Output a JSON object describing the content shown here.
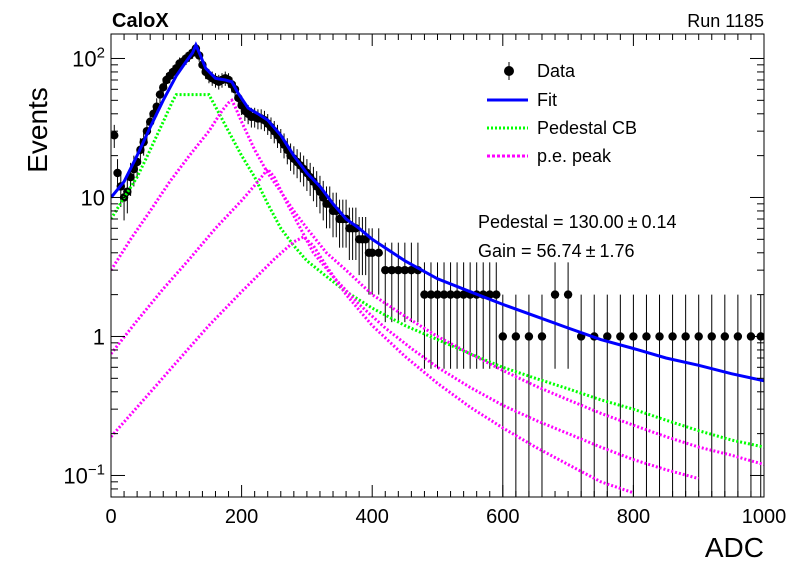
{
  "header": {
    "experiment": "CaloX",
    "run": "Run 1185"
  },
  "chart_data": {
    "type": "scatter",
    "title": "",
    "xlabel": "ADC",
    "ylabel": "Events",
    "xlim": [
      0,
      1000
    ],
    "ylim": [
      0.07,
      150
    ],
    "yscale": "log",
    "x_ticks": [
      0,
      200,
      400,
      600,
      800,
      1000
    ],
    "y_ticks": [
      {
        "value": 0.1,
        "base": "10",
        "exp": "−1",
        "text": ""
      },
      {
        "value": 1,
        "base": "",
        "exp": "",
        "text": "1"
      },
      {
        "value": 10,
        "base": "",
        "exp": "",
        "text": "10"
      },
      {
        "value": 100,
        "base": "10",
        "exp": "2",
        "text": ""
      }
    ],
    "legend": {
      "placement": "top-right",
      "entries": [
        {
          "label": "Data",
          "style": "marker",
          "color": "#000000"
        },
        {
          "label": "Fit",
          "style": "solid",
          "color": "#0000ff"
        },
        {
          "label": "Pedestal CB",
          "style": "dotted",
          "color": "#00ff00"
        },
        {
          "label": "p.e. peak",
          "style": "dotted",
          "color": "#ff00ff"
        }
      ]
    },
    "annotations": [
      {
        "label": "Pedestal = 130.00",
        "pm": "±",
        "err": "0.14"
      },
      {
        "label": "Gain = 56.74",
        "pm": "±",
        "err": "1.76"
      }
    ],
    "fit_parameters": {
      "pedestal": 130.0,
      "pedestal_err": 0.14,
      "gain": 56.74,
      "gain_err": 1.76
    },
    "series": [
      {
        "name": "Data",
        "kind": "points",
        "color": "#000000",
        "points": [
          [
            5,
            28
          ],
          [
            10,
            15
          ],
          [
            15,
            12
          ],
          [
            20,
            10
          ],
          [
            25,
            11
          ],
          [
            30,
            14
          ],
          [
            35,
            16
          ],
          [
            40,
            18
          ],
          [
            45,
            22
          ],
          [
            50,
            25
          ],
          [
            55,
            30
          ],
          [
            60,
            35
          ],
          [
            65,
            40
          ],
          [
            70,
            45
          ],
          [
            75,
            55
          ],
          [
            80,
            62
          ],
          [
            85,
            70
          ],
          [
            90,
            75
          ],
          [
            95,
            80
          ],
          [
            100,
            85
          ],
          [
            105,
            92
          ],
          [
            110,
            95
          ],
          [
            115,
            100
          ],
          [
            120,
            105
          ],
          [
            125,
            110
          ],
          [
            130,
            118
          ],
          [
            135,
            105
          ],
          [
            140,
            90
          ],
          [
            145,
            80
          ],
          [
            150,
            75
          ],
          [
            155,
            72
          ],
          [
            160,
            70
          ],
          [
            165,
            68
          ],
          [
            170,
            70
          ],
          [
            175,
            72
          ],
          [
            180,
            70
          ],
          [
            185,
            65
          ],
          [
            190,
            60
          ],
          [
            195,
            52
          ],
          [
            200,
            46
          ],
          [
            205,
            42
          ],
          [
            210,
            40
          ],
          [
            215,
            38
          ],
          [
            220,
            38
          ],
          [
            225,
            37
          ],
          [
            230,
            37
          ],
          [
            235,
            36
          ],
          [
            240,
            34
          ],
          [
            245,
            32
          ],
          [
            250,
            30
          ],
          [
            255,
            28
          ],
          [
            260,
            26
          ],
          [
            265,
            24
          ],
          [
            270,
            22
          ],
          [
            275,
            20
          ],
          [
            280,
            19
          ],
          [
            285,
            18
          ],
          [
            290,
            17
          ],
          [
            295,
            16
          ],
          [
            300,
            15
          ],
          [
            305,
            14
          ],
          [
            310,
            13
          ],
          [
            315,
            12
          ],
          [
            320,
            11
          ],
          [
            325,
            10
          ],
          [
            330,
            9
          ],
          [
            335,
            9
          ],
          [
            340,
            8
          ],
          [
            345,
            8
          ],
          [
            350,
            7
          ],
          [
            355,
            7
          ],
          [
            360,
            7
          ],
          [
            365,
            6
          ],
          [
            370,
            6
          ],
          [
            375,
            6
          ],
          [
            380,
            5
          ],
          [
            385,
            5
          ],
          [
            390,
            5
          ],
          [
            395,
            4
          ],
          [
            400,
            4
          ],
          [
            410,
            4
          ],
          [
            420,
            3
          ],
          [
            430,
            3
          ],
          [
            440,
            3
          ],
          [
            450,
            3
          ],
          [
            460,
            3
          ],
          [
            470,
            3
          ],
          [
            480,
            2
          ],
          [
            490,
            2
          ],
          [
            500,
            2
          ],
          [
            510,
            2
          ],
          [
            520,
            2
          ],
          [
            530,
            2
          ],
          [
            540,
            2
          ],
          [
            550,
            2
          ],
          [
            560,
            2
          ],
          [
            570,
            2
          ],
          [
            580,
            2
          ],
          [
            590,
            2
          ],
          [
            600,
            1
          ],
          [
            620,
            1
          ],
          [
            640,
            1
          ],
          [
            660,
            1
          ],
          [
            680,
            2
          ],
          [
            700,
            2
          ],
          [
            720,
            1
          ],
          [
            740,
            1
          ],
          [
            760,
            1
          ],
          [
            780,
            1
          ],
          [
            800,
            1
          ],
          [
            820,
            1
          ],
          [
            840,
            1
          ],
          [
            860,
            1
          ],
          [
            880,
            1
          ],
          [
            900,
            1
          ],
          [
            920,
            1
          ],
          [
            940,
            1
          ],
          [
            960,
            1
          ],
          [
            980,
            1
          ],
          [
            995,
            1
          ]
        ]
      },
      {
        "name": "Fit",
        "kind": "line",
        "color": "#0000ff",
        "points": [
          [
            0,
            10
          ],
          [
            20,
            13
          ],
          [
            40,
            20
          ],
          [
            60,
            32
          ],
          [
            80,
            50
          ],
          [
            100,
            75
          ],
          [
            115,
            95
          ],
          [
            125,
            110
          ],
          [
            130,
            125
          ],
          [
            135,
            110
          ],
          [
            145,
            85
          ],
          [
            160,
            72
          ],
          [
            175,
            70
          ],
          [
            185,
            68
          ],
          [
            195,
            56
          ],
          [
            210,
            44
          ],
          [
            225,
            40
          ],
          [
            240,
            36
          ],
          [
            260,
            28
          ],
          [
            280,
            20
          ],
          [
            300,
            15
          ],
          [
            320,
            12
          ],
          [
            340,
            9
          ],
          [
            360,
            7
          ],
          [
            380,
            6
          ],
          [
            400,
            5
          ],
          [
            450,
            3.5
          ],
          [
            500,
            2.6
          ],
          [
            550,
            2.1
          ],
          [
            600,
            1.7
          ],
          [
            650,
            1.4
          ],
          [
            700,
            1.15
          ],
          [
            750,
            0.95
          ],
          [
            800,
            0.82
          ],
          [
            850,
            0.7
          ],
          [
            900,
            0.62
          ],
          [
            950,
            0.54
          ],
          [
            1000,
            0.48
          ]
        ]
      },
      {
        "name": "Pedestal CB",
        "kind": "dotted",
        "color": "#00ff00",
        "points": [
          [
            0,
            7
          ],
          [
            20,
            10
          ],
          [
            40,
            14
          ],
          [
            60,
            22
          ],
          [
            80,
            35
          ],
          [
            95,
            50
          ],
          [
            100,
            55
          ],
          [
            150,
            55
          ],
          [
            160,
            45
          ],
          [
            180,
            30
          ],
          [
            200,
            20
          ],
          [
            220,
            14
          ],
          [
            240,
            9
          ],
          [
            260,
            6
          ],
          [
            280,
            4.5
          ],
          [
            300,
            3.5
          ],
          [
            330,
            2.7
          ],
          [
            360,
            2.1
          ],
          [
            400,
            1.6
          ],
          [
            450,
            1.2
          ],
          [
            500,
            0.95
          ],
          [
            550,
            0.75
          ],
          [
            600,
            0.6
          ],
          [
            650,
            0.5
          ],
          [
            700,
            0.42
          ],
          [
            750,
            0.35
          ],
          [
            800,
            0.3
          ],
          [
            850,
            0.25
          ],
          [
            900,
            0.21
          ],
          [
            950,
            0.18
          ],
          [
            1000,
            0.16
          ]
        ]
      },
      {
        "name": "p.e. peak 1",
        "kind": "dotted",
        "color": "#ff00ff",
        "points": [
          [
            0,
            3
          ],
          [
            30,
            5
          ],
          [
            60,
            8
          ],
          [
            90,
            13
          ],
          [
            120,
            20
          ],
          [
            150,
            30
          ],
          [
            170,
            42
          ],
          [
            180,
            48
          ],
          [
            185,
            50
          ],
          [
            190,
            45
          ],
          [
            200,
            35
          ],
          [
            220,
            22
          ],
          [
            240,
            15
          ],
          [
            260,
            11
          ],
          [
            280,
            8
          ],
          [
            300,
            6
          ],
          [
            330,
            4
          ],
          [
            360,
            3
          ],
          [
            400,
            2
          ],
          [
            450,
            1.4
          ],
          [
            500,
            1
          ],
          [
            550,
            0.75
          ],
          [
            600,
            0.57
          ],
          [
            650,
            0.44
          ],
          [
            700,
            0.35
          ],
          [
            750,
            0.28
          ],
          [
            800,
            0.23
          ],
          [
            850,
            0.19
          ],
          [
            900,
            0.16
          ],
          [
            950,
            0.14
          ],
          [
            1000,
            0.12
          ]
        ]
      },
      {
        "name": "p.e. peak 2",
        "kind": "dotted",
        "color": "#ff00ff",
        "points": [
          [
            0,
            0.75
          ],
          [
            40,
            1.3
          ],
          [
            80,
            2.2
          ],
          [
            120,
            3.6
          ],
          [
            160,
            6
          ],
          [
            200,
            9.5
          ],
          [
            225,
            13
          ],
          [
            240,
            16
          ],
          [
            250,
            14
          ],
          [
            270,
            9
          ],
          [
            290,
            6
          ],
          [
            310,
            4
          ],
          [
            340,
            2.7
          ],
          [
            380,
            1.7
          ],
          [
            420,
            1.15
          ],
          [
            460,
            0.82
          ],
          [
            500,
            0.6
          ],
          [
            550,
            0.43
          ],
          [
            600,
            0.32
          ],
          [
            650,
            0.25
          ],
          [
            700,
            0.2
          ],
          [
            750,
            0.16
          ],
          [
            800,
            0.13
          ],
          [
            850,
            0.11
          ],
          [
            900,
            0.095
          ]
        ]
      },
      {
        "name": "p.e. peak 3",
        "kind": "dotted",
        "color": "#ff00ff",
        "points": [
          [
            0,
            0.19
          ],
          [
            50,
            0.35
          ],
          [
            100,
            0.65
          ],
          [
            150,
            1.2
          ],
          [
            200,
            2.1
          ],
          [
            250,
            3.6
          ],
          [
            280,
            4.8
          ],
          [
            295,
            5.2
          ],
          [
            310,
            4.5
          ],
          [
            330,
            3.2
          ],
          [
            360,
            2
          ],
          [
            400,
            1.2
          ],
          [
            450,
            0.72
          ],
          [
            500,
            0.46
          ],
          [
            550,
            0.31
          ],
          [
            600,
            0.22
          ],
          [
            650,
            0.16
          ],
          [
            700,
            0.12
          ],
          [
            750,
            0.09
          ],
          [
            800,
            0.075
          ]
        ]
      }
    ]
  }
}
